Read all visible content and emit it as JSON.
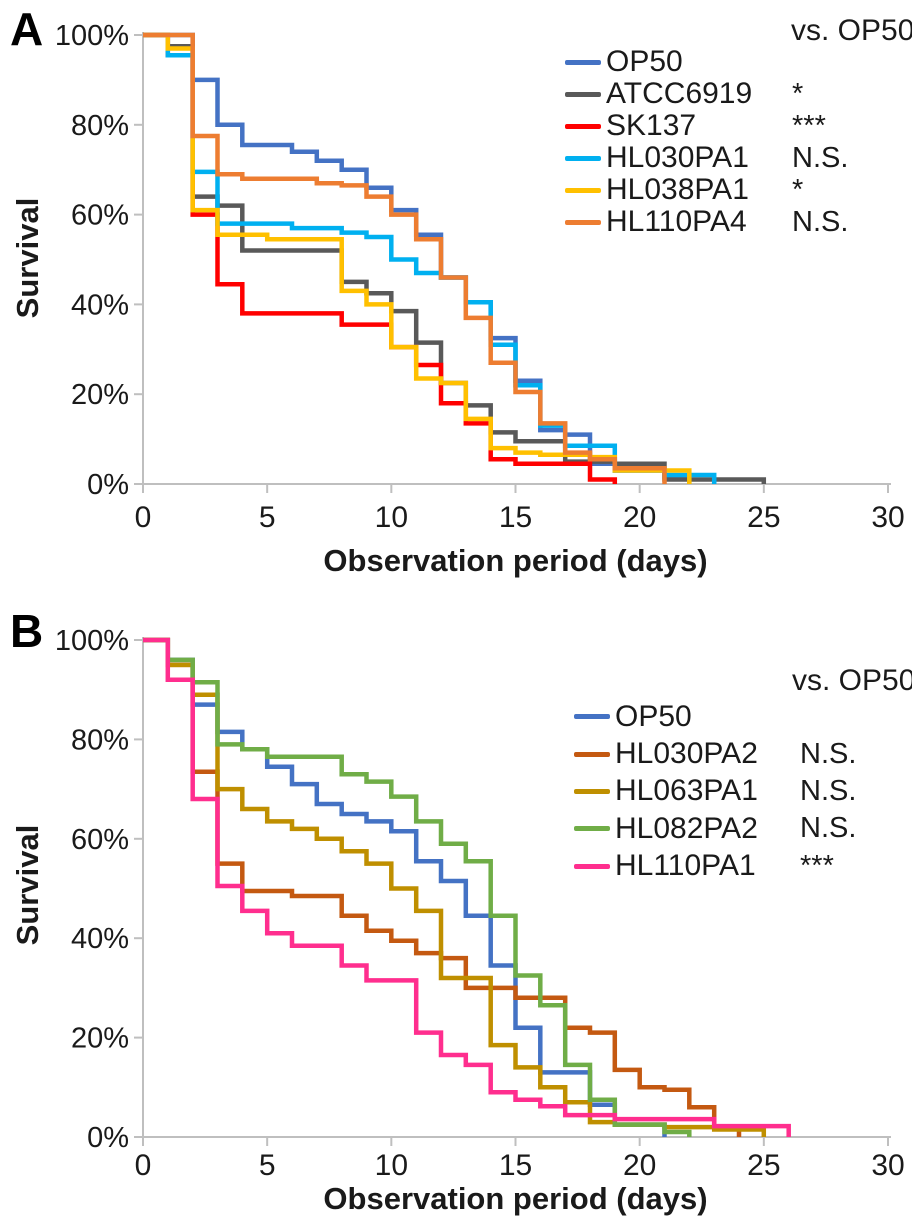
{
  "chart_data": [
    {
      "type": "line",
      "subtype": "step-survival",
      "panel_label": "A",
      "title": "",
      "xlabel": "Observation period (days)",
      "ylabel": "Survival",
      "legend_header": "vs. OP50",
      "legend_position": "top-right-inside",
      "grid": false,
      "xlim": [
        0,
        30
      ],
      "ylim_pct": [
        0,
        100
      ],
      "x_ticks": [
        0,
        5,
        10,
        15,
        20,
        25,
        30
      ],
      "y_tick_pcts": [
        0,
        20,
        40,
        60,
        80,
        100
      ],
      "y_tick_labels": [
        "0%",
        "20%",
        "40%",
        "60%",
        "80%",
        "100%"
      ],
      "series": [
        {
          "name": "OP50",
          "color": "#4472C4",
          "significance": "",
          "points": [
            [
              0,
              100
            ],
            [
              2,
              90
            ],
            [
              3,
              80
            ],
            [
              4,
              75.5
            ],
            [
              6,
              74
            ],
            [
              7,
              72
            ],
            [
              8,
              70
            ],
            [
              9,
              66
            ],
            [
              10,
              61
            ],
            [
              11,
              55.5
            ],
            [
              12,
              46
            ],
            [
              13,
              40.5
            ],
            [
              14,
              32.5
            ],
            [
              15,
              23
            ],
            [
              16,
              12
            ],
            [
              17,
              11
            ],
            [
              18,
              4.5
            ],
            [
              19,
              3
            ],
            [
              21,
              1.5
            ],
            [
              22,
              0
            ]
          ]
        },
        {
          "name": "ATCC6919",
          "color": "#595959",
          "significance": "*",
          "points": [
            [
              0,
              100
            ],
            [
              1,
              97.5
            ],
            [
              2,
              64
            ],
            [
              3,
              62
            ],
            [
              4,
              52
            ],
            [
              8,
              45
            ],
            [
              9,
              42.5
            ],
            [
              10,
              38.5
            ],
            [
              11,
              31.5
            ],
            [
              12,
              22.5
            ],
            [
              13,
              17.5
            ],
            [
              14,
              11.5
            ],
            [
              15,
              9.5
            ],
            [
              17,
              5
            ],
            [
              19,
              4.5
            ],
            [
              21,
              1
            ],
            [
              25,
              0
            ]
          ]
        },
        {
          "name": "SK137",
          "color": "#FF0000",
          "significance": "***",
          "points": [
            [
              0,
              100
            ],
            [
              1,
              95.5
            ],
            [
              2,
              60
            ],
            [
              3,
              44.5
            ],
            [
              4,
              38
            ],
            [
              8,
              35.5
            ],
            [
              10,
              30.5
            ],
            [
              11,
              26.5
            ],
            [
              12,
              18
            ],
            [
              13,
              13.5
            ],
            [
              14,
              5.5
            ],
            [
              15,
              4.5
            ],
            [
              18,
              1
            ],
            [
              19,
              0
            ]
          ]
        },
        {
          "name": "HL030PA1",
          "color": "#00B0F0",
          "significance": "N.S.",
          "points": [
            [
              0,
              100
            ],
            [
              1,
              95.5
            ],
            [
              2,
              69.5
            ],
            [
              3,
              58
            ],
            [
              6,
              57
            ],
            [
              8,
              56
            ],
            [
              9,
              55
            ],
            [
              10,
              50
            ],
            [
              11,
              47
            ],
            [
              12,
              46
            ],
            [
              13,
              40.5
            ],
            [
              14,
              31
            ],
            [
              15,
              22
            ],
            [
              16,
              13
            ],
            [
              17,
              8.5
            ],
            [
              19,
              3
            ],
            [
              21,
              2
            ],
            [
              23,
              0
            ]
          ]
        },
        {
          "name": "HL038PA1",
          "color": "#FFC000",
          "significance": "*",
          "points": [
            [
              0,
              100
            ],
            [
              1,
              97
            ],
            [
              2,
              61
            ],
            [
              3,
              55.5
            ],
            [
              5,
              54.5
            ],
            [
              8,
              43
            ],
            [
              9,
              40
            ],
            [
              10,
              30.5
            ],
            [
              11,
              23.5
            ],
            [
              12,
              22.5
            ],
            [
              13,
              14.5
            ],
            [
              14,
              8
            ],
            [
              15,
              7
            ],
            [
              16,
              6.5
            ],
            [
              18,
              6
            ],
            [
              19,
              3
            ],
            [
              22,
              0
            ]
          ]
        },
        {
          "name": "HL110PA4",
          "color": "#ED7D31",
          "significance": "N.S.",
          "points": [
            [
              0,
              100
            ],
            [
              2,
              77.5
            ],
            [
              3,
              69
            ],
            [
              4,
              68
            ],
            [
              7,
              67
            ],
            [
              8,
              66.5
            ],
            [
              9,
              64
            ],
            [
              10,
              60
            ],
            [
              11,
              54.5
            ],
            [
              12,
              46
            ],
            [
              13,
              37
            ],
            [
              14,
              27
            ],
            [
              15,
              20.5
            ],
            [
              16,
              13.5
            ],
            [
              17,
              7
            ],
            [
              18,
              5.5
            ],
            [
              19,
              3.5
            ],
            [
              21,
              0
            ]
          ]
        }
      ]
    },
    {
      "type": "line",
      "subtype": "step-survival",
      "panel_label": "B",
      "title": "",
      "xlabel": "Observation period (days)",
      "ylabel": "Survival",
      "legend_header": "vs. OP50",
      "legend_position": "top-right-inside",
      "grid": false,
      "xlim": [
        0,
        30
      ],
      "ylim_pct": [
        0,
        100
      ],
      "x_ticks": [
        0,
        5,
        10,
        15,
        20,
        25,
        30
      ],
      "y_tick_pcts": [
        0,
        20,
        40,
        60,
        80,
        100
      ],
      "y_tick_labels": [
        "0%",
        "20%",
        "40%",
        "60%",
        "80%",
        "100%"
      ],
      "series": [
        {
          "name": "OP50",
          "color": "#4472C4",
          "significance": "",
          "points": [
            [
              0,
              100
            ],
            [
              1,
              96
            ],
            [
              2,
              87
            ],
            [
              3,
              81.5
            ],
            [
              4,
              78
            ],
            [
              5,
              74.5
            ],
            [
              6,
              71
            ],
            [
              7,
              67
            ],
            [
              8,
              65
            ],
            [
              9,
              63.5
            ],
            [
              10,
              61.5
            ],
            [
              11,
              55.5
            ],
            [
              12,
              51.5
            ],
            [
              13,
              44.5
            ],
            [
              14,
              34.5
            ],
            [
              15,
              22
            ],
            [
              16,
              13
            ],
            [
              18,
              6.5
            ],
            [
              19,
              2.5
            ],
            [
              21,
              0
            ]
          ]
        },
        {
          "name": "HL030PA2",
          "color": "#C45911",
          "significance": "N.S.",
          "points": [
            [
              0,
              100
            ],
            [
              1,
              95
            ],
            [
              2,
              73.5
            ],
            [
              3,
              55
            ],
            [
              4,
              49.5
            ],
            [
              6,
              48.5
            ],
            [
              8,
              44.5
            ],
            [
              9,
              41.5
            ],
            [
              10,
              39.5
            ],
            [
              11,
              37
            ],
            [
              12,
              36
            ],
            [
              13,
              30
            ],
            [
              15,
              28
            ],
            [
              17,
              22
            ],
            [
              18,
              21
            ],
            [
              19,
              13.5
            ],
            [
              20,
              10
            ],
            [
              21,
              9.5
            ],
            [
              22,
              6
            ],
            [
              23,
              2
            ],
            [
              24,
              0
            ]
          ]
        },
        {
          "name": "HL063PA1",
          "color": "#BF8F00",
          "significance": "N.S.",
          "points": [
            [
              0,
              100
            ],
            [
              1,
              95
            ],
            [
              2,
              89
            ],
            [
              3,
              70
            ],
            [
              4,
              66
            ],
            [
              5,
              63.5
            ],
            [
              6,
              62
            ],
            [
              7,
              60
            ],
            [
              8,
              57.5
            ],
            [
              9,
              55
            ],
            [
              10,
              50
            ],
            [
              11,
              45.5
            ],
            [
              12,
              32
            ],
            [
              14,
              18.5
            ],
            [
              15,
              14
            ],
            [
              16,
              10
            ],
            [
              17,
              7
            ],
            [
              18,
              3
            ],
            [
              19,
              2.5
            ],
            [
              21,
              2
            ],
            [
              23,
              1.5
            ],
            [
              25,
              0
            ]
          ]
        },
        {
          "name": "HL082PA2",
          "color": "#70AD47",
          "significance": "N.S.",
          "points": [
            [
              0,
              100
            ],
            [
              1,
              96
            ],
            [
              2,
              91.5
            ],
            [
              3,
              79
            ],
            [
              4,
              78
            ],
            [
              5,
              76.5
            ],
            [
              8,
              73
            ],
            [
              9,
              71.5
            ],
            [
              10,
              68.5
            ],
            [
              11,
              63.5
            ],
            [
              12,
              59
            ],
            [
              13,
              55.5
            ],
            [
              14,
              44.5
            ],
            [
              15,
              32.5
            ],
            [
              16,
              26.5
            ],
            [
              17,
              14.5
            ],
            [
              18,
              7.5
            ],
            [
              19,
              2.5
            ],
            [
              21,
              1
            ],
            [
              22,
              0
            ]
          ]
        },
        {
          "name": "HL110PA1",
          "color": "#FF2E8E",
          "significance": "***",
          "points": [
            [
              0,
              100
            ],
            [
              1,
              92
            ],
            [
              2,
              68
            ],
            [
              3,
              50.5
            ],
            [
              4,
              45.5
            ],
            [
              5,
              41
            ],
            [
              6,
              38.5
            ],
            [
              8,
              34.5
            ],
            [
              9,
              31.5
            ],
            [
              11,
              21
            ],
            [
              12,
              16.5
            ],
            [
              13,
              14.5
            ],
            [
              14,
              9
            ],
            [
              15,
              7.5
            ],
            [
              16,
              6.2
            ],
            [
              17,
              4.4
            ],
            [
              19,
              3.6
            ],
            [
              23,
              2.2
            ],
            [
              26,
              0
            ]
          ]
        }
      ]
    }
  ],
  "axis_style": {
    "axis_color": "#BFBFBF",
    "tick_text_color": "#1a1a1a"
  }
}
